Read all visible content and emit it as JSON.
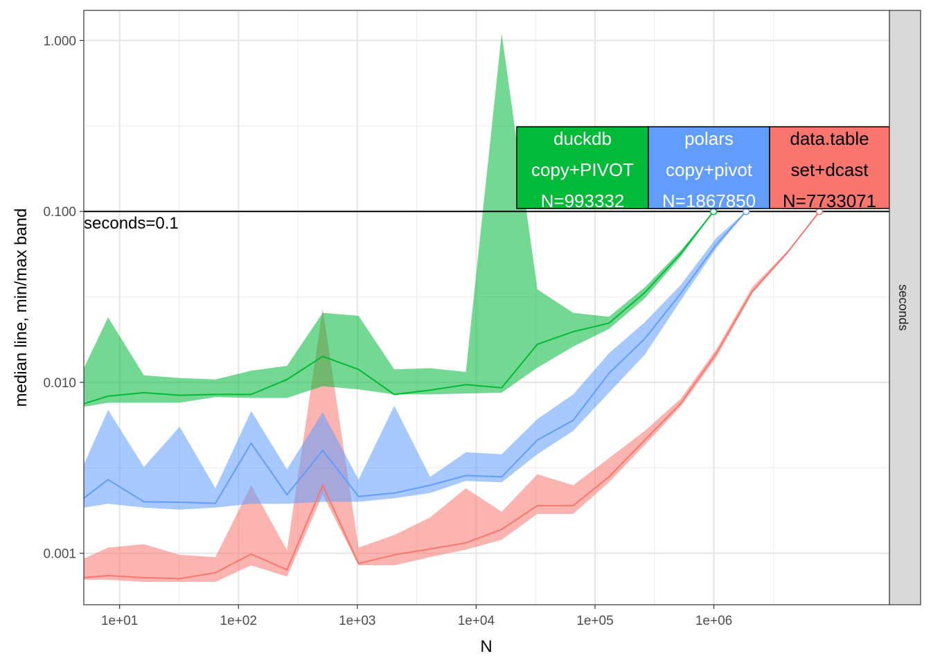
{
  "chart_data": {
    "type": "line",
    "xlabel": "N",
    "ylabel": "median line, min/max band",
    "x_scale": "log10",
    "y_scale": "log10",
    "xlim": [
      5,
      30000000
    ],
    "ylim": [
      0.0005,
      1.5
    ],
    "x_ticks": [
      10,
      100,
      1000,
      10000,
      100000,
      1000000
    ],
    "x_tick_labels": [
      "1e+01",
      "1e+02",
      "1e+03",
      "1e+04",
      "1e+05",
      "1e+06"
    ],
    "y_ticks": [
      0.001,
      0.01,
      0.1,
      1
    ],
    "y_tick_labels": [
      "0.001",
      "0.010",
      "0.100",
      "1.000"
    ],
    "grid": true,
    "facet_strip": "seconds",
    "reference_line": {
      "y": 0.1,
      "label": "seconds=0.1"
    },
    "series": [
      {
        "color": "#F8766D",
        "label_lines": [
          "data.table",
          "set+dcast",
          "N=7733071"
        ],
        "x": [
          5,
          8,
          16,
          32,
          64,
          128,
          256,
          512,
          1024,
          2048,
          4096,
          8192,
          16384,
          32768,
          65536,
          131072,
          262144,
          524288,
          1048576,
          2097152,
          4194304,
          7733071
        ],
        "median": [
          0.00072,
          0.00074,
          0.00072,
          0.00071,
          0.00077,
          0.00099,
          0.0008,
          0.0025,
          0.00087,
          0.00098,
          0.00106,
          0.00115,
          0.00138,
          0.0019,
          0.0019,
          0.0028,
          0.0046,
          0.0075,
          0.0148,
          0.034,
          0.058,
          0.1
        ],
        "min": [
          0.0007,
          0.0007,
          0.00068,
          0.00068,
          0.00068,
          0.00085,
          0.00073,
          0.0022,
          0.00085,
          0.00085,
          0.00095,
          0.00105,
          0.0012,
          0.0017,
          0.0017,
          0.0026,
          0.0043,
          0.0072,
          0.014,
          0.033,
          0.057,
          0.1
        ],
        "max": [
          0.00093,
          0.00108,
          0.00113,
          0.00098,
          0.00095,
          0.0025,
          0.00104,
          0.027,
          0.00108,
          0.00128,
          0.00162,
          0.0024,
          0.00175,
          0.0029,
          0.0025,
          0.0036,
          0.0052,
          0.008,
          0.0156,
          0.036,
          0.059,
          0.1
        ]
      },
      {
        "color": "#619CFF",
        "label_lines": [
          "polars",
          "copy+pivot",
          "N=1867850"
        ],
        "x": [
          5,
          8,
          16,
          32,
          64,
          128,
          256,
          512,
          1024,
          2048,
          4096,
          8192,
          16384,
          32768,
          65536,
          131072,
          262144,
          524288,
          1048576,
          1867850
        ],
        "median": [
          0.0021,
          0.0027,
          0.002,
          0.00199,
          0.00196,
          0.0044,
          0.0022,
          0.004,
          0.00215,
          0.00225,
          0.0025,
          0.00285,
          0.0028,
          0.0046,
          0.006,
          0.0113,
          0.018,
          0.033,
          0.064,
          0.1
        ],
        "min": [
          0.00185,
          0.00195,
          0.00185,
          0.0018,
          0.00185,
          0.00195,
          0.00195,
          0.002,
          0.002,
          0.0021,
          0.00225,
          0.00265,
          0.0026,
          0.0038,
          0.0052,
          0.0087,
          0.0145,
          0.03,
          0.061,
          0.1
        ],
        "max": [
          0.0033,
          0.0069,
          0.0032,
          0.0055,
          0.0024,
          0.0068,
          0.0031,
          0.0067,
          0.0027,
          0.0073,
          0.0028,
          0.0039,
          0.0038,
          0.0061,
          0.0085,
          0.0148,
          0.0225,
          0.037,
          0.07,
          0.1
        ]
      },
      {
        "color": "#00BA38",
        "label_lines": [
          "duckdb",
          "copy+PIVOT",
          "N=993332"
        ],
        "x": [
          5,
          8,
          16,
          32,
          64,
          128,
          256,
          512,
          1024,
          2048,
          4096,
          8192,
          16384,
          32768,
          65536,
          131072,
          262144,
          524288,
          993332
        ],
        "median": [
          0.0075,
          0.0083,
          0.0087,
          0.0084,
          0.0085,
          0.0085,
          0.0104,
          0.0142,
          0.0119,
          0.0085,
          0.009,
          0.0097,
          0.0093,
          0.0167,
          0.0198,
          0.0222,
          0.0335,
          0.0565,
          0.1
        ],
        "min": [
          0.0072,
          0.0076,
          0.0076,
          0.0076,
          0.0082,
          0.0081,
          0.0081,
          0.0095,
          0.0091,
          0.0085,
          0.0085,
          0.0086,
          0.0087,
          0.0122,
          0.0162,
          0.0205,
          0.031,
          0.054,
          0.1
        ],
        "max": [
          0.0121,
          0.024,
          0.011,
          0.0106,
          0.0104,
          0.0117,
          0.0125,
          0.0255,
          0.0245,
          0.0119,
          0.0121,
          0.0115,
          1.1,
          0.035,
          0.0255,
          0.0242,
          0.036,
          0.059,
          0.1
        ]
      }
    ]
  }
}
